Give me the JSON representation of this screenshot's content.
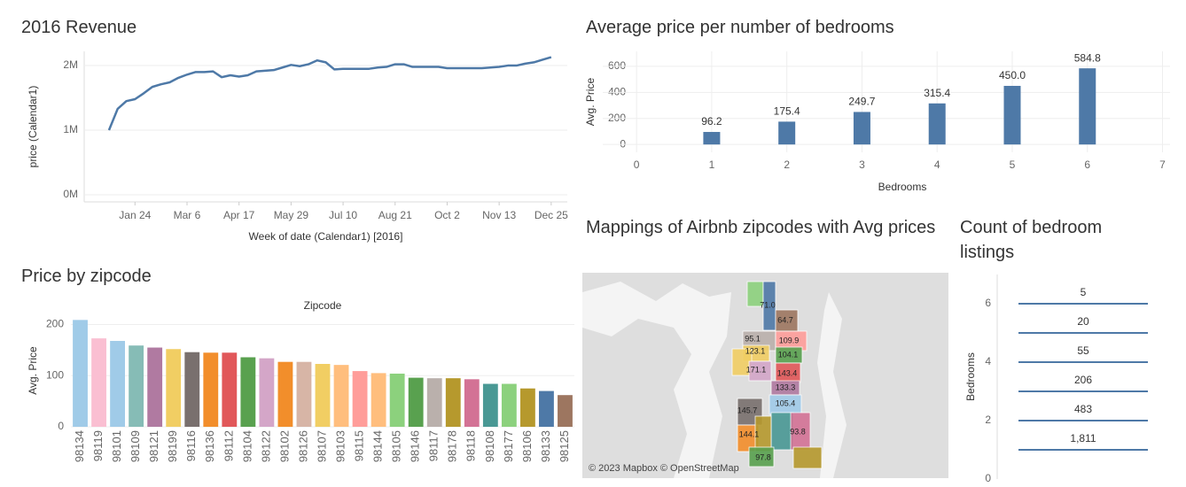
{
  "chart_data": [
    {
      "type": "line",
      "title": "2016 Revenue",
      "y_label": "price (Calendar1)",
      "x_label": "Week of date (Calendar1) [2016]",
      "color": "#4e79a7",
      "x": [
        "2016-01-03",
        "2016-01-10",
        "2016-01-17",
        "2016-01-24",
        "2016-01-31",
        "2016-02-07",
        "2016-02-14",
        "2016-02-21",
        "2016-02-28",
        "2016-03-06",
        "2016-03-13",
        "2016-03-20",
        "2016-03-27",
        "2016-04-03",
        "2016-04-10",
        "2016-04-17",
        "2016-04-24",
        "2016-05-01",
        "2016-05-08",
        "2016-05-15",
        "2016-05-22",
        "2016-05-29",
        "2016-06-05",
        "2016-06-12",
        "2016-06-19",
        "2016-06-26",
        "2016-07-03",
        "2016-07-10",
        "2016-07-17",
        "2016-07-24",
        "2016-07-31",
        "2016-08-07",
        "2016-08-14",
        "2016-08-21",
        "2016-08-28",
        "2016-09-04",
        "2016-09-11",
        "2016-09-18",
        "2016-09-25",
        "2016-10-02",
        "2016-10-09",
        "2016-10-16",
        "2016-10-23",
        "2016-10-30",
        "2016-11-06",
        "2016-11-13",
        "2016-11-20",
        "2016-11-27",
        "2016-12-04",
        "2016-12-11",
        "2016-12-18",
        "2016-12-25"
      ],
      "values": [
        1000000,
        1330000,
        1450000,
        1480000,
        1570000,
        1670000,
        1710000,
        1740000,
        1810000,
        1860000,
        1900000,
        1900000,
        1910000,
        1820000,
        1850000,
        1830000,
        1850000,
        1910000,
        1920000,
        1930000,
        1970000,
        2010000,
        1990000,
        2020000,
        2080000,
        2050000,
        1940000,
        1950000,
        1950000,
        1950000,
        1950000,
        1970000,
        1980000,
        2020000,
        2020000,
        1980000,
        1980000,
        1980000,
        1980000,
        1960000,
        1960000,
        1960000,
        1960000,
        1960000,
        1970000,
        1980000,
        2000000,
        2000000,
        2030000,
        2050000,
        2090000,
        2130000
      ],
      "xlim": [
        "2015-12-14",
        "2017-01-07"
      ],
      "xticks": [
        {
          "value": "2016-01-24",
          "label": "Jan 24"
        },
        {
          "value": "2016-03-06",
          "label": "Mar 6"
        },
        {
          "value": "2016-04-17",
          "label": "Apr 17"
        },
        {
          "value": "2016-05-29",
          "label": "May 29"
        },
        {
          "value": "2016-07-10",
          "label": "Jul 10"
        },
        {
          "value": "2016-08-21",
          "label": "Aug 21"
        },
        {
          "value": "2016-10-02",
          "label": "Oct 2"
        },
        {
          "value": "2016-11-13",
          "label": "Nov 13"
        },
        {
          "value": "2016-12-25",
          "label": "Dec 25"
        }
      ],
      "ylim": [
        -110000,
        2220000
      ],
      "yticks": [
        {
          "value": 0,
          "label": "0M"
        },
        {
          "value": 1000000,
          "label": "1M"
        },
        {
          "value": 2000000,
          "label": "2M"
        }
      ],
      "grid": true
    },
    {
      "type": "bar",
      "title": "Average price per number of bedrooms",
      "y_label": "Avg. Price",
      "x_label": "Bedrooms",
      "color": "#4e79a7",
      "x": [
        1,
        2,
        3,
        4,
        5,
        6
      ],
      "values": [
        96.2,
        175.4,
        249.7,
        315.4,
        450.0,
        584.8
      ],
      "value_labels": [
        "96.2",
        "175.4",
        "249.7",
        "315.4",
        "450.0",
        "584.8"
      ],
      "xlim": [
        -0.45,
        7.1
      ],
      "xticks": [
        0,
        1,
        2,
        3,
        4,
        5,
        6,
        7
      ],
      "ylim": [
        -60,
        715
      ],
      "yticks": [
        0,
        200,
        400,
        600
      ],
      "grid": true
    },
    {
      "type": "bar",
      "title": "Price by zipcode",
      "y_label": "Avg. Price",
      "x_label": "Zipcode",
      "categories": [
        "98134",
        "98119",
        "98101",
        "98109",
        "98121",
        "98199",
        "98116",
        "98136",
        "98112",
        "98104",
        "98122",
        "98102",
        "98126",
        "98107",
        "98103",
        "98115",
        "98144",
        "98105",
        "98146",
        "98117",
        "98178",
        "98118",
        "98108",
        "98177",
        "98106",
        "98133",
        "98125"
      ],
      "values": [
        209,
        173,
        168,
        159,
        155,
        152,
        146,
        145,
        145,
        136,
        134,
        127,
        127,
        123,
        121,
        109,
        105,
        104,
        96,
        95,
        95,
        93,
        84,
        84,
        75,
        70,
        62
      ],
      "colors": [
        "#a0cbe8",
        "#fabfd2",
        "#a0cbe8",
        "#86bcb6",
        "#b07aa1",
        "#f1ce63",
        "#79706e",
        "#f28e2b",
        "#e15759",
        "#59a14f",
        "#d4a6c8",
        "#f28e2b",
        "#d7b5a6",
        "#f1ce63",
        "#ffbe7d",
        "#ff9d9a",
        "#ffbe7d",
        "#8cd17d",
        "#59a14f",
        "#bab0ac",
        "#b6992d",
        "#d37295",
        "#499894",
        "#8cd17d",
        "#b6992d",
        "#4e79a7",
        "#9d7660"
      ],
      "ylim": [
        0,
        220
      ],
      "yticks": [
        0,
        100,
        200
      ],
      "grid": true
    },
    {
      "type": "map",
      "title": "Mappings of  Airbnb zipcodes with Avg prices",
      "values": [
        71.0,
        64.7,
        95.1,
        109.9,
        123.1,
        104.1,
        171.1,
        143.4,
        133.3,
        105.4,
        145.7,
        93.8,
        144.1,
        97.8
      ],
      "value_labels": [
        "71.0",
        "64.7",
        "95.1",
        "109.9",
        "123.1",
        "104.1",
        "171.1",
        "143.4",
        "133.3",
        "105.4",
        "145.7",
        "93.8",
        "144.1",
        "97.8"
      ],
      "attribution": "© 2023 Mapbox © OpenStreetMap"
    },
    {
      "type": "gantt",
      "title": "Count of bedroom listings",
      "y_label": "Bedrooms",
      "color": "#4e79a7",
      "y": [
        6,
        5,
        4,
        3,
        2,
        1
      ],
      "values": [
        5,
        20,
        55,
        206,
        483,
        1811
      ],
      "value_labels": [
        "5",
        "20",
        "55",
        "206",
        "483",
        "1,811"
      ],
      "ylim": [
        0,
        7
      ],
      "yticks": [
        0,
        2,
        4,
        6
      ]
    }
  ]
}
